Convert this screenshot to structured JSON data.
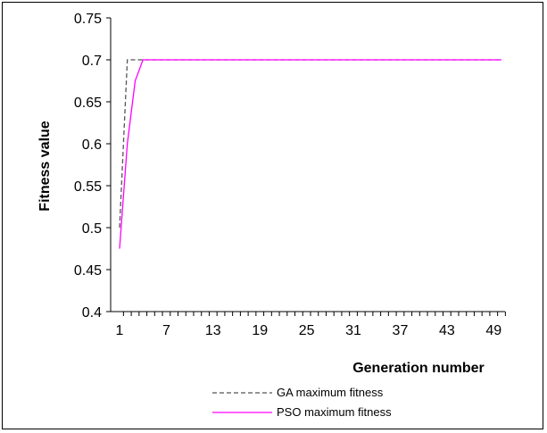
{
  "chart_data": {
    "type": "line",
    "title": "",
    "xlabel": "Generation number",
    "ylabel": "Fitness value",
    "x_ticks": [
      "1",
      "7",
      "13",
      "19",
      "25",
      "31",
      "37",
      "43",
      "49"
    ],
    "y_ticks": [
      "0.4",
      "0.45",
      "0.5",
      "0.55",
      "0.6",
      "0.65",
      "0.7",
      "0.75"
    ],
    "xlim": [
      1,
      50
    ],
    "ylim": [
      0.4,
      0.75
    ],
    "grid": false,
    "legend_position": "bottom",
    "series": [
      {
        "name": "GA maximum fitness",
        "color": "#555555",
        "line_style": "dashed",
        "x": [
          1,
          2,
          3,
          4,
          5,
          10,
          20,
          30,
          40,
          50
        ],
        "y": [
          0.5,
          0.7,
          0.7,
          0.7,
          0.7,
          0.7,
          0.7,
          0.7,
          0.7,
          0.7
        ]
      },
      {
        "name": "PSO maximum fitness",
        "color": "#ff00ff",
        "line_style": "solid",
        "x": [
          1,
          2,
          3,
          4,
          5,
          10,
          20,
          30,
          40,
          50
        ],
        "y": [
          0.475,
          0.6,
          0.675,
          0.7,
          0.7,
          0.7,
          0.7,
          0.7,
          0.7,
          0.7
        ]
      }
    ]
  }
}
